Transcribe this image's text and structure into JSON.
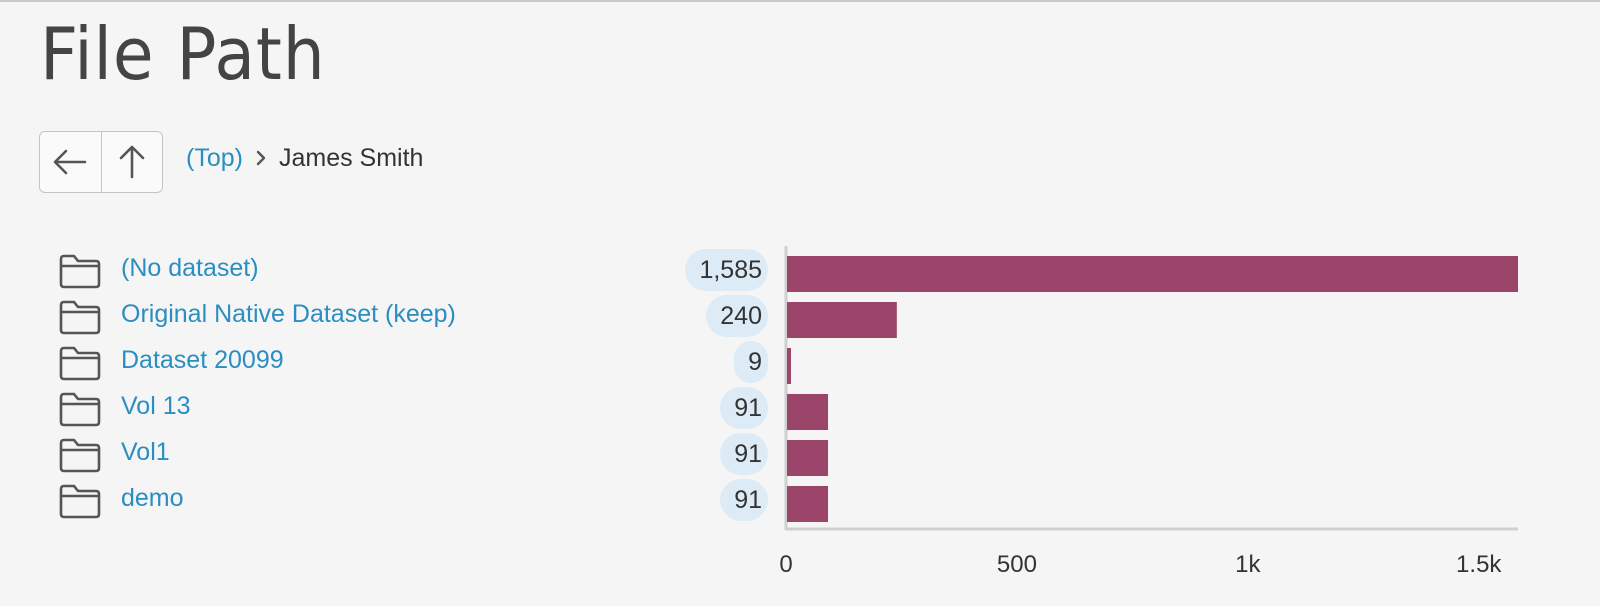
{
  "page": {
    "title": "File Path"
  },
  "nav": {
    "back_icon": "arrow-left-icon",
    "up_icon": "arrow-up-icon"
  },
  "breadcrumb": {
    "top_label": "(Top)",
    "separator_icon": "chevron-right-icon",
    "current_label": "James Smith"
  },
  "folders": [
    {
      "label": "(No dataset)",
      "count": "1,585",
      "icon": "folder-icon"
    },
    {
      "label": "Original Native Dataset (keep)",
      "count": "240",
      "icon": "folder-icon"
    },
    {
      "label": "Dataset 20099",
      "count": "9",
      "icon": "folder-icon"
    },
    {
      "label": "Vol 13",
      "count": "91",
      "icon": "folder-icon"
    },
    {
      "label": "Vol1",
      "count": "91",
      "icon": "folder-icon"
    },
    {
      "label": "demo",
      "count": "91",
      "icon": "folder-icon"
    }
  ],
  "colors": {
    "bar": "#9a4569",
    "link": "#2a8ec2",
    "badge": "#dcebf5"
  },
  "chart_data": {
    "type": "bar",
    "orientation": "horizontal",
    "categories": [
      "(No dataset)",
      "Original Native Dataset (keep)",
      "Dataset 20099",
      "Vol 13",
      "Vol1",
      "demo"
    ],
    "values": [
      1585,
      240,
      9,
      91,
      91,
      91
    ],
    "xlim": [
      0,
      1585
    ],
    "xticks": [
      0,
      500,
      1000,
      1500
    ],
    "xtick_labels": [
      "0",
      "500",
      "1k",
      "1.5k"
    ],
    "grid": false
  }
}
